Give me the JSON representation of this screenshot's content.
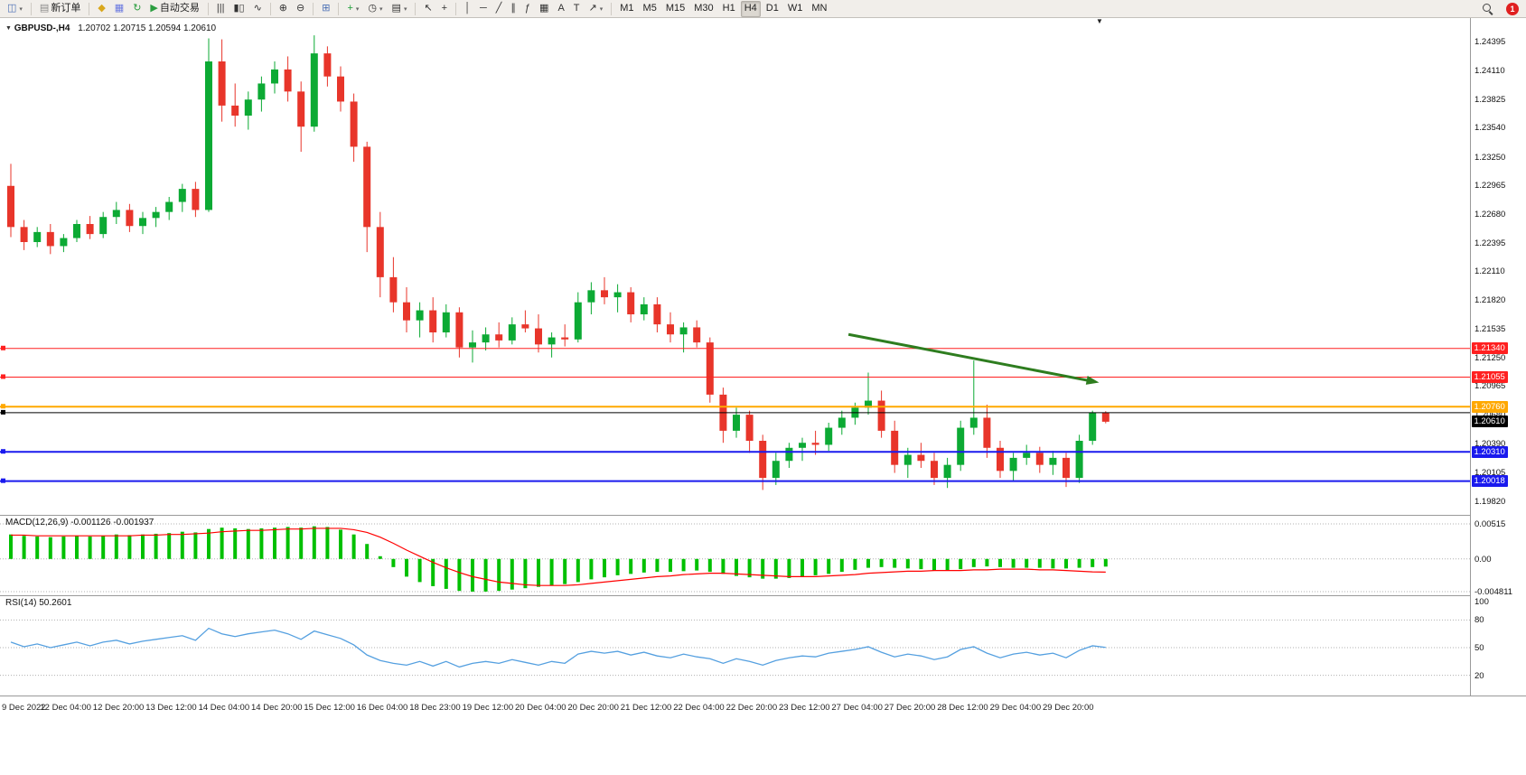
{
  "toolbar": {
    "notification_count": "1",
    "groups": [
      {
        "items": [
          {
            "name": "new-chart-button",
            "glyph": "◫",
            "color": "#4a6fb5",
            "caret": true
          }
        ]
      },
      {
        "items": [
          {
            "name": "new-order-button",
            "glyph": "▤",
            "color": "#8a8a8a",
            "label": "新订单"
          }
        ]
      },
      {
        "items": [
          {
            "name": "profiles-button",
            "glyph": "◆",
            "color": "#d9a71c"
          },
          {
            "name": "depth-of-market-button",
            "glyph": "▦",
            "color": "#6a79e0"
          },
          {
            "name": "refresh-button",
            "glyph": "↻",
            "color": "#2a9d3f"
          },
          {
            "name": "autotrading-button",
            "glyph": "▶",
            "color": "#2a9d3f",
            "label": "自动交易"
          }
        ]
      },
      {
        "items": [
          {
            "name": "bar-chart-button",
            "glyph": "|||",
            "color": "#333333"
          },
          {
            "name": "candlestick-chart-button",
            "glyph": "▮▯",
            "color": "#333333"
          },
          {
            "name": "line-chart-button",
            "glyph": "∿",
            "color": "#333333"
          }
        ]
      },
      {
        "items": [
          {
            "name": "zoom-in-button",
            "glyph": "⊕",
            "color": "#333333"
          },
          {
            "name": "zoom-out-button",
            "glyph": "⊖",
            "color": "#333333"
          }
        ]
      },
      {
        "items": [
          {
            "name": "tile-windows-button",
            "glyph": "⊞",
            "color": "#4a6fb5"
          }
        ]
      },
      {
        "items": [
          {
            "name": "indicators-button",
            "glyph": "+",
            "color": "#1d9e35",
            "caret": true
          },
          {
            "name": "periods-button",
            "glyph": "◷",
            "color": "#333333",
            "caret": true
          },
          {
            "name": "templates-button",
            "glyph": "▤",
            "color": "#333333",
            "caret": true
          }
        ]
      },
      {
        "items": [
          {
            "name": "cursor-button",
            "glyph": "↖",
            "color": "#333333"
          },
          {
            "name": "crosshair-button",
            "glyph": "+",
            "color": "#333333"
          }
        ]
      },
      {
        "items": [
          {
            "name": "vertical-line-button",
            "glyph": "│",
            "color": "#333333"
          },
          {
            "name": "horizontal-line-button",
            "glyph": "─",
            "color": "#333333"
          },
          {
            "name": "trendline-button",
            "glyph": "╱",
            "color": "#333333"
          },
          {
            "name": "channel-button",
            "glyph": "∥",
            "color": "#333333"
          },
          {
            "name": "fibonacci-button",
            "glyph": "ƒ",
            "color": "#333333"
          },
          {
            "name": "shapes-button",
            "glyph": "▦",
            "color": "#333333"
          },
          {
            "name": "text-button",
            "glyph": "A",
            "color": "#333333"
          },
          {
            "name": "text-label-button",
            "glyph": "T",
            "color": "#333333"
          },
          {
            "name": "arrows-button",
            "glyph": "↗",
            "color": "#333333",
            "caret": true
          }
        ]
      },
      {
        "items": [
          {
            "name": "timeframe-m1",
            "label": "M1"
          },
          {
            "name": "timeframe-m5",
            "label": "M5"
          },
          {
            "name": "timeframe-m15",
            "label": "M15"
          },
          {
            "name": "timeframe-m30",
            "label": "M30"
          },
          {
            "name": "timeframe-h1",
            "label": "H1"
          },
          {
            "name": "timeframe-h4",
            "label": "H4",
            "active": true
          },
          {
            "name": "timeframe-d1",
            "label": "D1"
          },
          {
            "name": "timeframe-w1",
            "label": "W1"
          },
          {
            "name": "timeframe-mn",
            "label": "MN"
          }
        ]
      }
    ]
  },
  "chart": {
    "symbol_period": "GBPUSD-,H4",
    "ohlc": "1.20702 1.20715 1.20594 1.20610"
  },
  "chart_data": {
    "type": "candlestick",
    "symbol": "GBPUSD-",
    "timeframe": "H4",
    "colors": {
      "up": "#0caa34",
      "down": "#e8352a",
      "bg": "#ffffff"
    },
    "price_axis": {
      "top_price": 1.2456,
      "bottom_price": 1.197,
      "labels": [
        "1.24395",
        "1.24110",
        "1.23825",
        "1.23540",
        "1.23250",
        "1.22965",
        "1.22680",
        "1.22395",
        "1.22110",
        "1.21820",
        "1.21535",
        "1.21250",
        "1.20965",
        "1.20680",
        "1.20390",
        "1.20105",
        "1.19820"
      ]
    },
    "time_labels": [
      "9 Dec 2022",
      "12 Dec 04:00",
      "12 Dec 20:00",
      "13 Dec 12:00",
      "14 Dec 04:00",
      "14 Dec 20:00",
      "15 Dec 12:00",
      "16 Dec 04:00",
      "18 Dec 23:00",
      "19 Dec 12:00",
      "20 Dec 04:00",
      "20 Dec 20:00",
      "21 Dec 12:00",
      "22 Dec 04:00",
      "22 Dec 20:00",
      "23 Dec 12:00",
      "27 Dec 04:00",
      "27 Dec 20:00",
      "28 Dec 12:00",
      "29 Dec 04:00",
      "29 Dec 20:00"
    ],
    "candles": [
      [
        1.2296,
        1.2318,
        1.2245,
        1.2255
      ],
      [
        1.2255,
        1.2262,
        1.2232,
        1.224
      ],
      [
        1.224,
        1.2255,
        1.2235,
        1.225
      ],
      [
        1.225,
        1.2258,
        1.2228,
        1.2236
      ],
      [
        1.2236,
        1.2248,
        1.223,
        1.2244
      ],
      [
        1.2244,
        1.2262,
        1.224,
        1.2258
      ],
      [
        1.2258,
        1.2266,
        1.2243,
        1.2248
      ],
      [
        1.2248,
        1.227,
        1.2244,
        1.2265
      ],
      [
        1.2265,
        1.228,
        1.2258,
        1.2272
      ],
      [
        1.2272,
        1.2278,
        1.225,
        1.2256
      ],
      [
        1.2256,
        1.227,
        1.2248,
        1.2264
      ],
      [
        1.2264,
        1.2275,
        1.2255,
        1.227
      ],
      [
        1.227,
        1.2285,
        1.2262,
        1.228
      ],
      [
        1.228,
        1.2298,
        1.227,
        1.2293
      ],
      [
        1.2293,
        1.23,
        1.2265,
        1.2272
      ],
      [
        1.2272,
        1.2443,
        1.227,
        1.242
      ],
      [
        1.242,
        1.2442,
        1.236,
        1.2376
      ],
      [
        1.2376,
        1.2398,
        1.2355,
        1.2366
      ],
      [
        1.2366,
        1.239,
        1.2352,
        1.2382
      ],
      [
        1.2382,
        1.2405,
        1.237,
        1.2398
      ],
      [
        1.2398,
        1.242,
        1.2388,
        1.2412
      ],
      [
        1.2412,
        1.2425,
        1.238,
        1.239
      ],
      [
        1.239,
        1.24,
        1.233,
        1.2355
      ],
      [
        1.2355,
        1.2446,
        1.235,
        1.2428
      ],
      [
        1.2428,
        1.2435,
        1.2395,
        1.2405
      ],
      [
        1.2405,
        1.2415,
        1.237,
        1.238
      ],
      [
        1.238,
        1.2388,
        1.232,
        1.2335
      ],
      [
        1.2335,
        1.234,
        1.223,
        1.2255
      ],
      [
        1.2255,
        1.227,
        1.2185,
        1.2205
      ],
      [
        1.2205,
        1.2225,
        1.217,
        1.218
      ],
      [
        1.218,
        1.2195,
        1.215,
        1.2162
      ],
      [
        1.2162,
        1.218,
        1.2145,
        1.2172
      ],
      [
        1.2172,
        1.2185,
        1.214,
        1.215
      ],
      [
        1.215,
        1.2178,
        1.2145,
        1.217
      ],
      [
        1.217,
        1.2175,
        1.2125,
        1.2135
      ],
      [
        1.2135,
        1.2152,
        1.212,
        1.214
      ],
      [
        1.214,
        1.2155,
        1.2132,
        1.2148
      ],
      [
        1.2148,
        1.216,
        1.2135,
        1.2142
      ],
      [
        1.2142,
        1.2165,
        1.2138,
        1.2158
      ],
      [
        1.2158,
        1.2172,
        1.215,
        1.2154
      ],
      [
        1.2154,
        1.2168,
        1.213,
        1.2138
      ],
      [
        1.2138,
        1.215,
        1.2125,
        1.2145
      ],
      [
        1.2145,
        1.2158,
        1.2136,
        1.2143
      ],
      [
        1.2143,
        1.219,
        1.214,
        1.218
      ],
      [
        1.218,
        1.22,
        1.2168,
        1.2192
      ],
      [
        1.2192,
        1.2205,
        1.2178,
        1.2185
      ],
      [
        1.2185,
        1.2198,
        1.217,
        1.219
      ],
      [
        1.219,
        1.2195,
        1.216,
        1.2168
      ],
      [
        1.2168,
        1.2185,
        1.2162,
        1.2178
      ],
      [
        1.2178,
        1.2185,
        1.215,
        1.2158
      ],
      [
        1.2158,
        1.217,
        1.214,
        1.2148
      ],
      [
        1.2148,
        1.216,
        1.213,
        1.2155
      ],
      [
        1.2155,
        1.2162,
        1.2135,
        1.214
      ],
      [
        1.214,
        1.2145,
        1.208,
        1.2088
      ],
      [
        1.2088,
        1.2095,
        1.204,
        1.2052
      ],
      [
        1.2052,
        1.2075,
        1.2045,
        1.2068
      ],
      [
        1.2068,
        1.2072,
        1.203,
        1.2042
      ],
      [
        1.2042,
        1.2048,
        1.1993,
        1.2005
      ],
      [
        1.2005,
        1.203,
        1.1998,
        1.2022
      ],
      [
        1.2022,
        1.204,
        1.2015,
        1.2035
      ],
      [
        1.2035,
        1.2045,
        1.2022,
        1.204
      ],
      [
        1.204,
        1.2052,
        1.2028,
        1.2038
      ],
      [
        1.2038,
        1.206,
        1.2032,
        1.2055
      ],
      [
        1.2055,
        1.2072,
        1.2048,
        1.2065
      ],
      [
        1.2065,
        1.208,
        1.2058,
        1.2075
      ],
      [
        1.2075,
        1.211,
        1.2068,
        1.2082
      ],
      [
        1.2082,
        1.2092,
        1.2045,
        1.2052
      ],
      [
        1.2052,
        1.2062,
        1.201,
        1.2018
      ],
      [
        1.2018,
        1.2035,
        1.2005,
        1.2028
      ],
      [
        1.2028,
        1.204,
        1.2015,
        1.2022
      ],
      [
        1.2022,
        1.203,
        1.1998,
        1.2005
      ],
      [
        1.2005,
        1.2025,
        1.1995,
        1.2018
      ],
      [
        1.2018,
        1.2062,
        1.2012,
        1.2055
      ],
      [
        1.2055,
        1.2122,
        1.2048,
        1.2065
      ],
      [
        1.2065,
        1.2078,
        1.2025,
        1.2035
      ],
      [
        1.2035,
        1.2042,
        1.2005,
        1.2012
      ],
      [
        1.2012,
        1.203,
        1.2002,
        1.2025
      ],
      [
        1.2025,
        1.2038,
        1.2018,
        1.203
      ],
      [
        1.203,
        1.2036,
        1.201,
        1.2018
      ],
      [
        1.2018,
        1.2032,
        1.2008,
        1.2025
      ],
      [
        1.2025,
        1.203,
        1.1996,
        1.2005
      ],
      [
        1.2005,
        1.2048,
        1.2,
        1.2042
      ],
      [
        1.2042,
        1.2072,
        1.2038,
        1.20702
      ],
      [
        1.20702,
        1.20715,
        1.20594,
        1.2061
      ]
    ],
    "hlines": [
      {
        "price": 1.2134,
        "color": "#ff2020",
        "label": "1.21340",
        "width": 1
      },
      {
        "price": 1.21055,
        "color": "#ff2020",
        "label": "1.21055",
        "width": 1
      },
      {
        "price": 1.2076,
        "color": "#ffa800",
        "label": "1.20760",
        "width": 2
      },
      {
        "price": 1.207,
        "color": "#000000",
        "label": null,
        "width": 1
      },
      {
        "price": 1.2031,
        "color": "#1a1aee",
        "label": "1.20310",
        "width": 2
      },
      {
        "price": 1.20018,
        "color": "#1a1aee",
        "label": "1.20018",
        "width": 2
      }
    ],
    "current_price": {
      "value": "1.20610",
      "price": 1.2061,
      "bg": "#000000"
    },
    "trend_arrow": {
      "x1_bar": 63.5,
      "price1": 1.2148,
      "x2_bar": 82.5,
      "price2": 1.21,
      "color": "#2e7d1f"
    },
    "indicators": {
      "macd": {
        "label": "MACD(12,26,9) -0.001126 -0.001937",
        "colors": {
          "histogram": "#00c000",
          "signal": "#ff0000"
        },
        "axis": [
          {
            "v": 0.00515,
            "label": "0.00515"
          },
          {
            "v": 0,
            "label": "0.00"
          },
          {
            "v": -0.004811,
            "label": "-0.004811"
          }
        ],
        "histogram": [
          0.0036,
          0.0034,
          0.0033,
          0.0032,
          0.0033,
          0.0034,
          0.0033,
          0.0034,
          0.0036,
          0.0035,
          0.0036,
          0.0037,
          0.0038,
          0.004,
          0.0039,
          0.0044,
          0.0046,
          0.0045,
          0.0044,
          0.0045,
          0.0046,
          0.0047,
          0.0046,
          0.0048,
          0.0047,
          0.0043,
          0.0036,
          0.0022,
          0.0004,
          -0.0012,
          -0.0026,
          -0.0034,
          -0.004,
          -0.0044,
          -0.0047,
          -0.0048,
          -0.0048,
          -0.0047,
          -0.0045,
          -0.0043,
          -0.0041,
          -0.0039,
          -0.0037,
          -0.0034,
          -0.003,
          -0.0027,
          -0.0024,
          -0.0022,
          -0.002,
          -0.0019,
          -0.0019,
          -0.0018,
          -0.0017,
          -0.0019,
          -0.0022,
          -0.0025,
          -0.0027,
          -0.0029,
          -0.0029,
          -0.0028,
          -0.0026,
          -0.0024,
          -0.0022,
          -0.0019,
          -0.0016,
          -0.0013,
          -0.0012,
          -0.0013,
          -0.0014,
          -0.0015,
          -0.0017,
          -0.0017,
          -0.0015,
          -0.0012,
          -0.0011,
          -0.0012,
          -0.0013,
          -0.0013,
          -0.0013,
          -0.0014,
          -0.0014,
          -0.0013,
          -0.0012,
          -0.001126
        ],
        "signal": [
          0.0035,
          0.0035,
          0.0034,
          0.0034,
          0.0034,
          0.0034,
          0.0034,
          0.0034,
          0.0034,
          0.0034,
          0.0035,
          0.0035,
          0.0036,
          0.0036,
          0.0037,
          0.0038,
          0.004,
          0.0041,
          0.0042,
          0.0042,
          0.0043,
          0.0044,
          0.0044,
          0.0045,
          0.0045,
          0.0045,
          0.0043,
          0.0039,
          0.0032,
          0.0023,
          0.0013,
          0.0004,
          -0.0005,
          -0.0013,
          -0.002,
          -0.0026,
          -0.003,
          -0.0034,
          -0.0036,
          -0.0038,
          -0.0039,
          -0.0039,
          -0.0039,
          -0.0038,
          -0.0036,
          -0.0034,
          -0.0032,
          -0.003,
          -0.0028,
          -0.0026,
          -0.0025,
          -0.0023,
          -0.0022,
          -0.0021,
          -0.0021,
          -0.0022,
          -0.0023,
          -0.0024,
          -0.0025,
          -0.0026,
          -0.0026,
          -0.0026,
          -0.0025,
          -0.0024,
          -0.0023,
          -0.0021,
          -0.002,
          -0.0019,
          -0.0018,
          -0.0018,
          -0.0017,
          -0.0017,
          -0.0017,
          -0.0016,
          -0.0016,
          -0.0015,
          -0.0015,
          -0.0015,
          -0.0016,
          -0.0016,
          -0.0017,
          -0.0018,
          -0.0019,
          -0.001937
        ]
      },
      "rsi": {
        "label": "RSI(14) 50.2601",
        "color": "#55a0e0",
        "levels": [
          80,
          50,
          20
        ],
        "axis": [
          {
            "v": 100,
            "label": "100"
          },
          {
            "v": 80,
            "label": "80"
          },
          {
            "v": 50,
            "label": "50"
          },
          {
            "v": 20,
            "label": "20"
          }
        ],
        "values": [
          56,
          51,
          54,
          50,
          53,
          56,
          52,
          56,
          58,
          54,
          57,
          59,
          61,
          63,
          58,
          71,
          65,
          62,
          65,
          67,
          69,
          65,
          59,
          68,
          64,
          60,
          53,
          42,
          36,
          33,
          31,
          35,
          30,
          35,
          29,
          33,
          35,
          33,
          37,
          34,
          31,
          35,
          33,
          43,
          46,
          44,
          46,
          42,
          45,
          41,
          39,
          43,
          40,
          38,
          33,
          38,
          35,
          31,
          36,
          39,
          41,
          40,
          44,
          46,
          48,
          51,
          45,
          40,
          43,
          41,
          37,
          40,
          48,
          51,
          44,
          39,
          43,
          45,
          42,
          44,
          39,
          47,
          52,
          50.26
        ]
      }
    }
  }
}
